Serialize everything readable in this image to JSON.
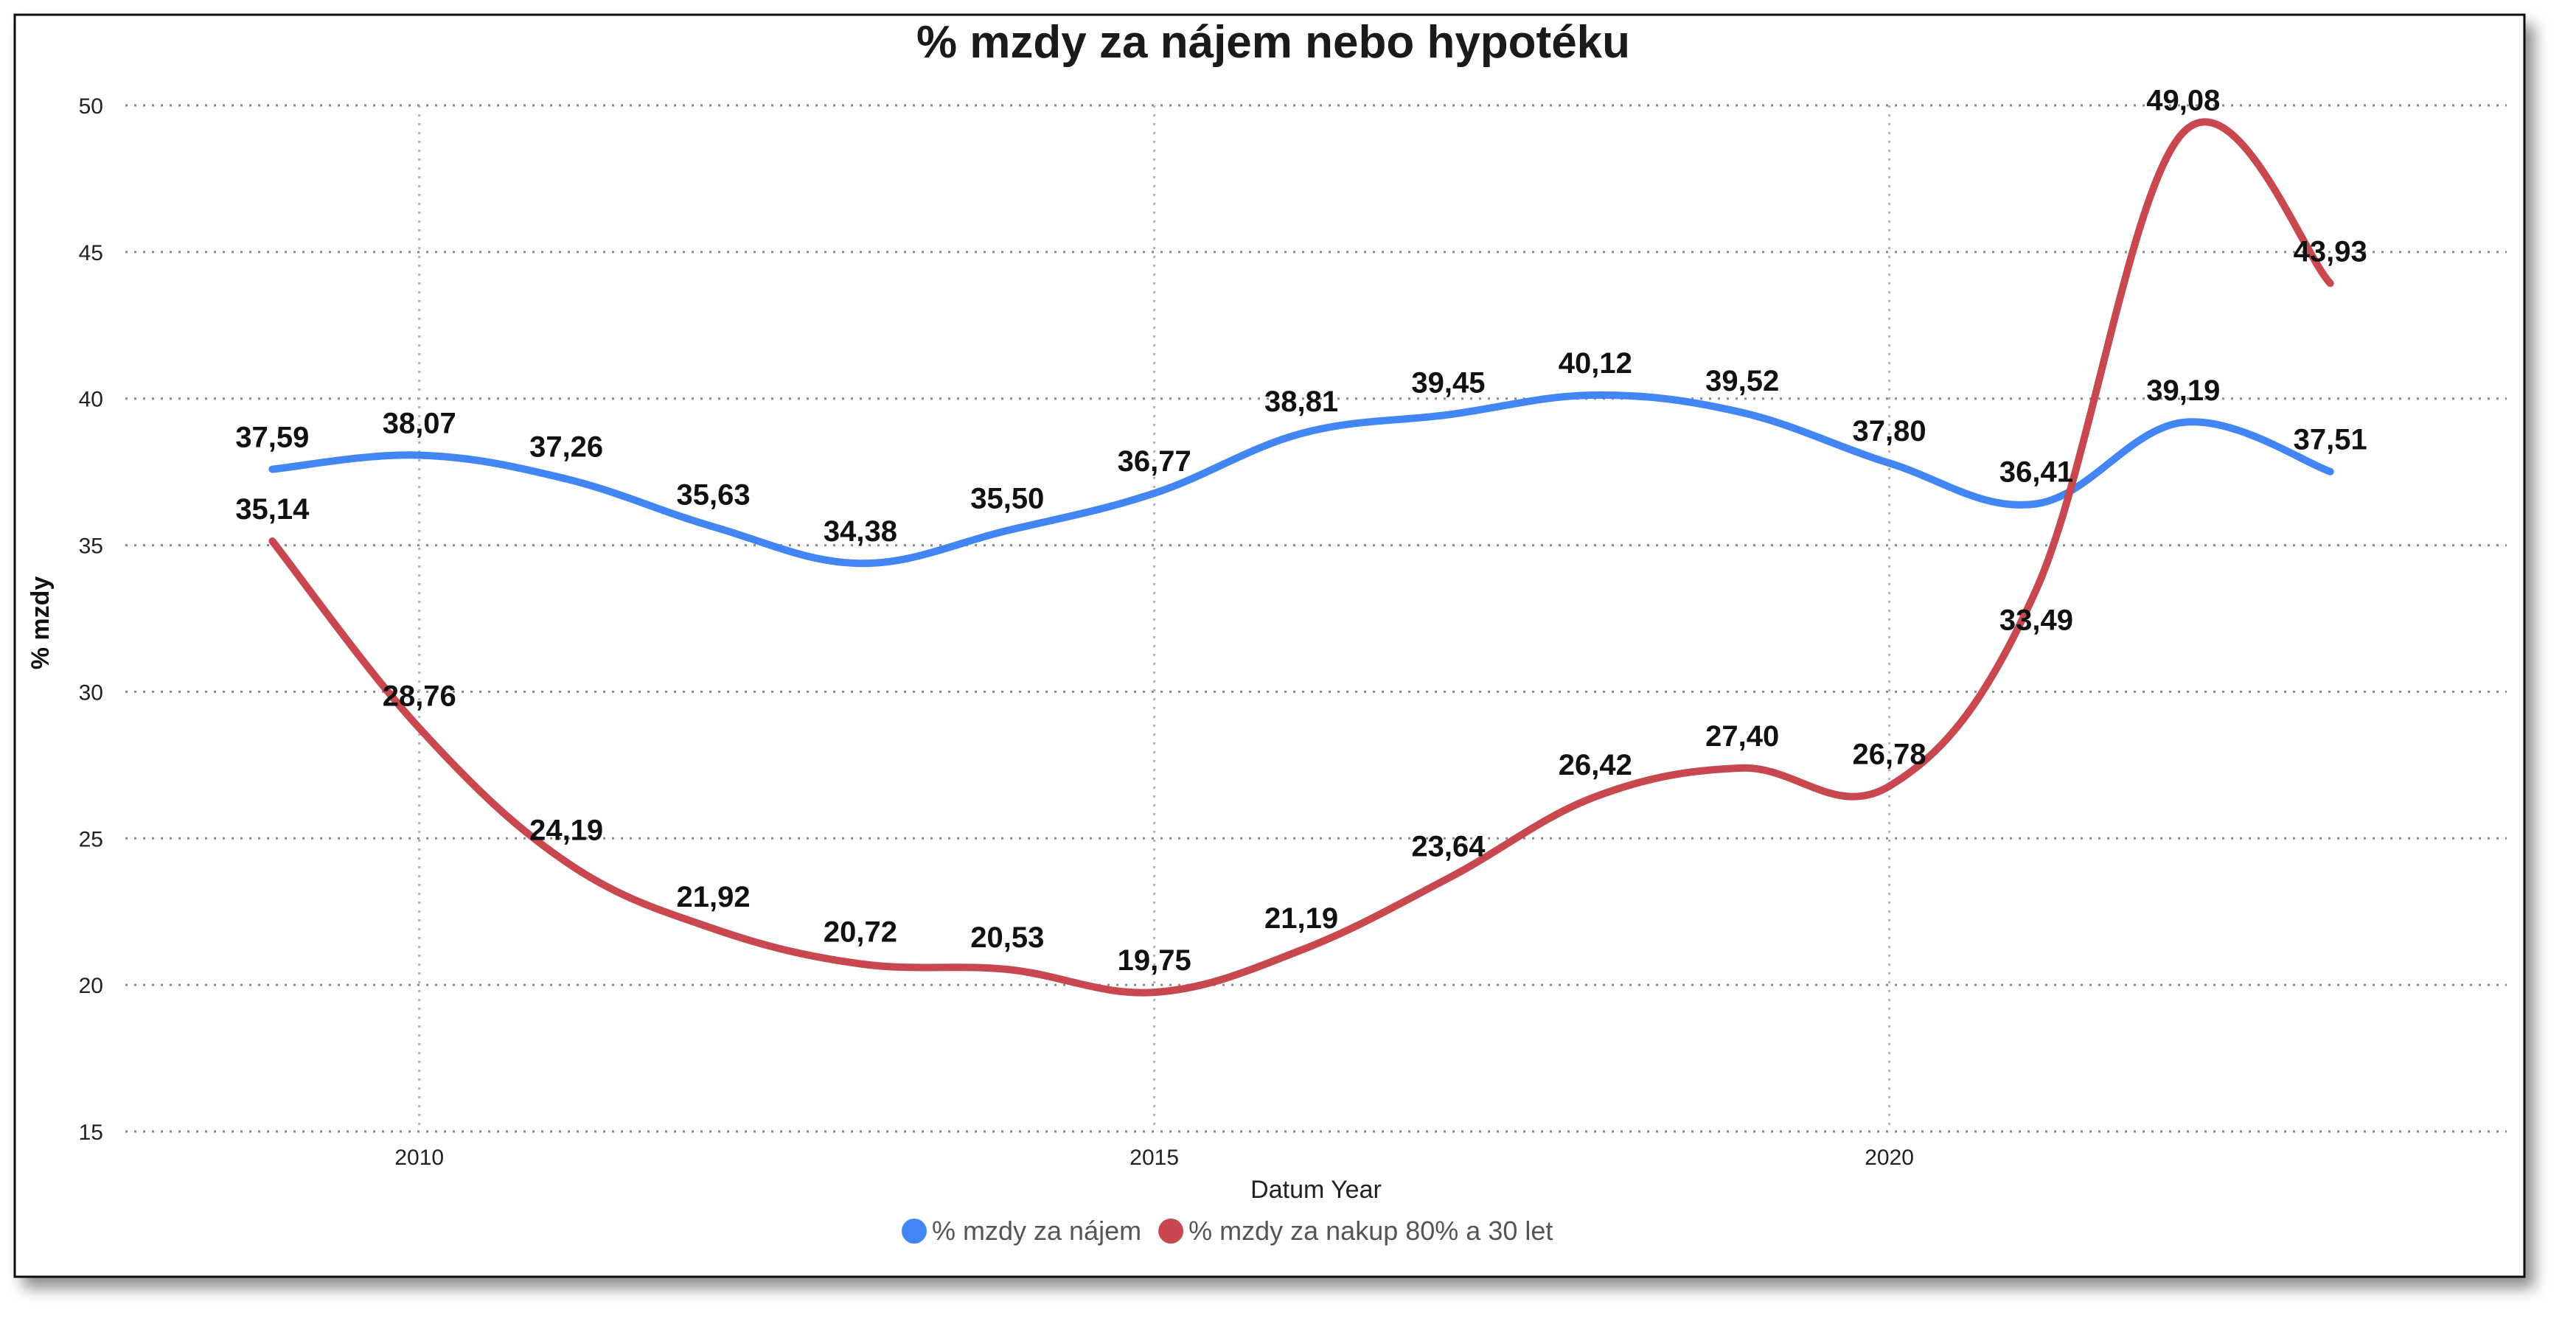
{
  "chart_data": {
    "type": "line",
    "title": "% mzdy za nájem nebo hypotéku",
    "xlabel": "Datum Year",
    "ylabel": "% mzdy",
    "x_ticks": [
      "2010",
      "2015",
      "2020"
    ],
    "y_ticks": [
      "15",
      "20",
      "25",
      "30",
      "35",
      "40",
      "45",
      "50"
    ],
    "xlim": [
      2008,
      2024.2
    ],
    "ylim": [
      15,
      50
    ],
    "grid": true,
    "legend_position": "bottom",
    "x": [
      2009,
      2010,
      2011,
      2012,
      2013,
      2014,
      2015,
      2016,
      2017,
      2018,
      2019,
      2020,
      2021,
      2022,
      2023
    ],
    "series": [
      {
        "name": "% mzdy za nájem",
        "color": "#4285f4",
        "values": [
          37.59,
          38.07,
          37.26,
          35.63,
          34.38,
          35.5,
          36.77,
          38.81,
          39.45,
          40.12,
          39.52,
          37.8,
          36.41,
          39.19,
          37.51
        ],
        "labels": [
          "37,59",
          "38,07",
          "37,26",
          "35,63",
          "34,38",
          "35,50",
          "36,77",
          "38,81",
          "39,45",
          "40,12",
          "39,52",
          "37,80",
          "36,41",
          "39,19",
          "37,51"
        ]
      },
      {
        "name": "% mzdy za nakup 80% a 30 let",
        "color": "#c9484f",
        "values": [
          35.14,
          28.76,
          24.19,
          21.92,
          20.72,
          20.53,
          19.75,
          21.19,
          23.64,
          26.42,
          27.4,
          26.78,
          33.49,
          49.08,
          43.93
        ],
        "labels": [
          "35,14",
          "28,76",
          "24,19",
          "21,92",
          "20,72",
          "20,53",
          "19,75",
          "21,19",
          "23,64",
          "26,42",
          "27,40",
          "26,78",
          "33,49",
          "49,08",
          "43,93"
        ]
      }
    ]
  }
}
